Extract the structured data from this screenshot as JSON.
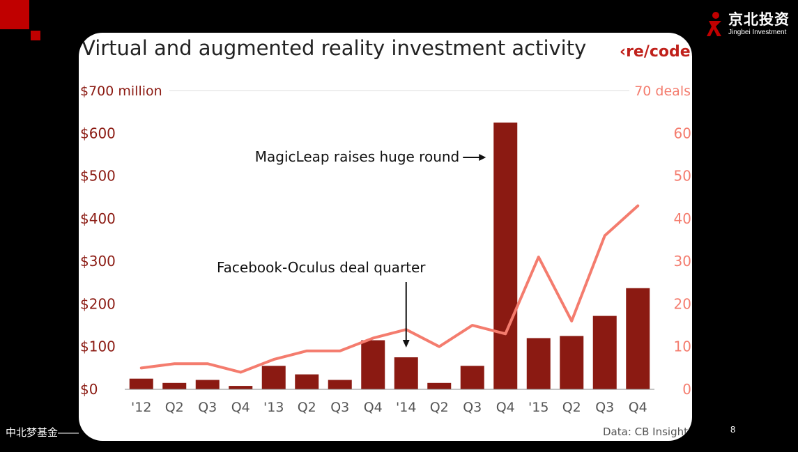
{
  "slide": {
    "footer_text": "中北梦基金——",
    "page_number": "8",
    "logo": {
      "name_cn": "京北投资",
      "name_en": "Jingbei Investment"
    },
    "accent_color": "#c00000"
  },
  "chart_data": {
    "type": "bar",
    "title": "Virtual and augmented reality investment activity",
    "brand": "‹re/code›",
    "source": "Data: CB Insights",
    "categories": [
      "'12",
      "Q2",
      "Q3",
      "Q4",
      "'13",
      "Q2",
      "Q3",
      "Q4",
      "'14",
      "Q2",
      "Q3",
      "Q4",
      "'15",
      "Q2",
      "Q3",
      "Q4"
    ],
    "series": [
      {
        "values": [
          25,
          15,
          22,
          8,
          55,
          35,
          22,
          115,
          75,
          15,
          55,
          625,
          120,
          125,
          172,
          237
        ],
        "color": "#8b1a12",
        "axis": "left"
      },
      {
        "values": [
          5,
          6,
          6,
          4,
          7,
          9,
          9,
          12,
          14,
          10,
          15,
          13,
          31,
          16,
          36,
          43
        ],
        "color": "#f47c6e",
        "axis": "right"
      }
    ],
    "y_left": {
      "top_label": "$700 million",
      "tick_labels": [
        "$0",
        "$100",
        "$200",
        "$300",
        "$400",
        "$500",
        "$600"
      ],
      "ylim": [
        0,
        700
      ]
    },
    "y_right": {
      "top_label": "70 deals",
      "tick_labels": [
        "0",
        "10",
        "20",
        "30",
        "40",
        "50",
        "60"
      ],
      "ylim": [
        0,
        70
      ]
    },
    "annotations": [
      {
        "text": "MagicLeap raises huge round",
        "category_index": 11
      },
      {
        "text": "Facebook-Oculus deal quarter",
        "category_index": 8
      }
    ],
    "grid": "horizontal-top-only"
  }
}
